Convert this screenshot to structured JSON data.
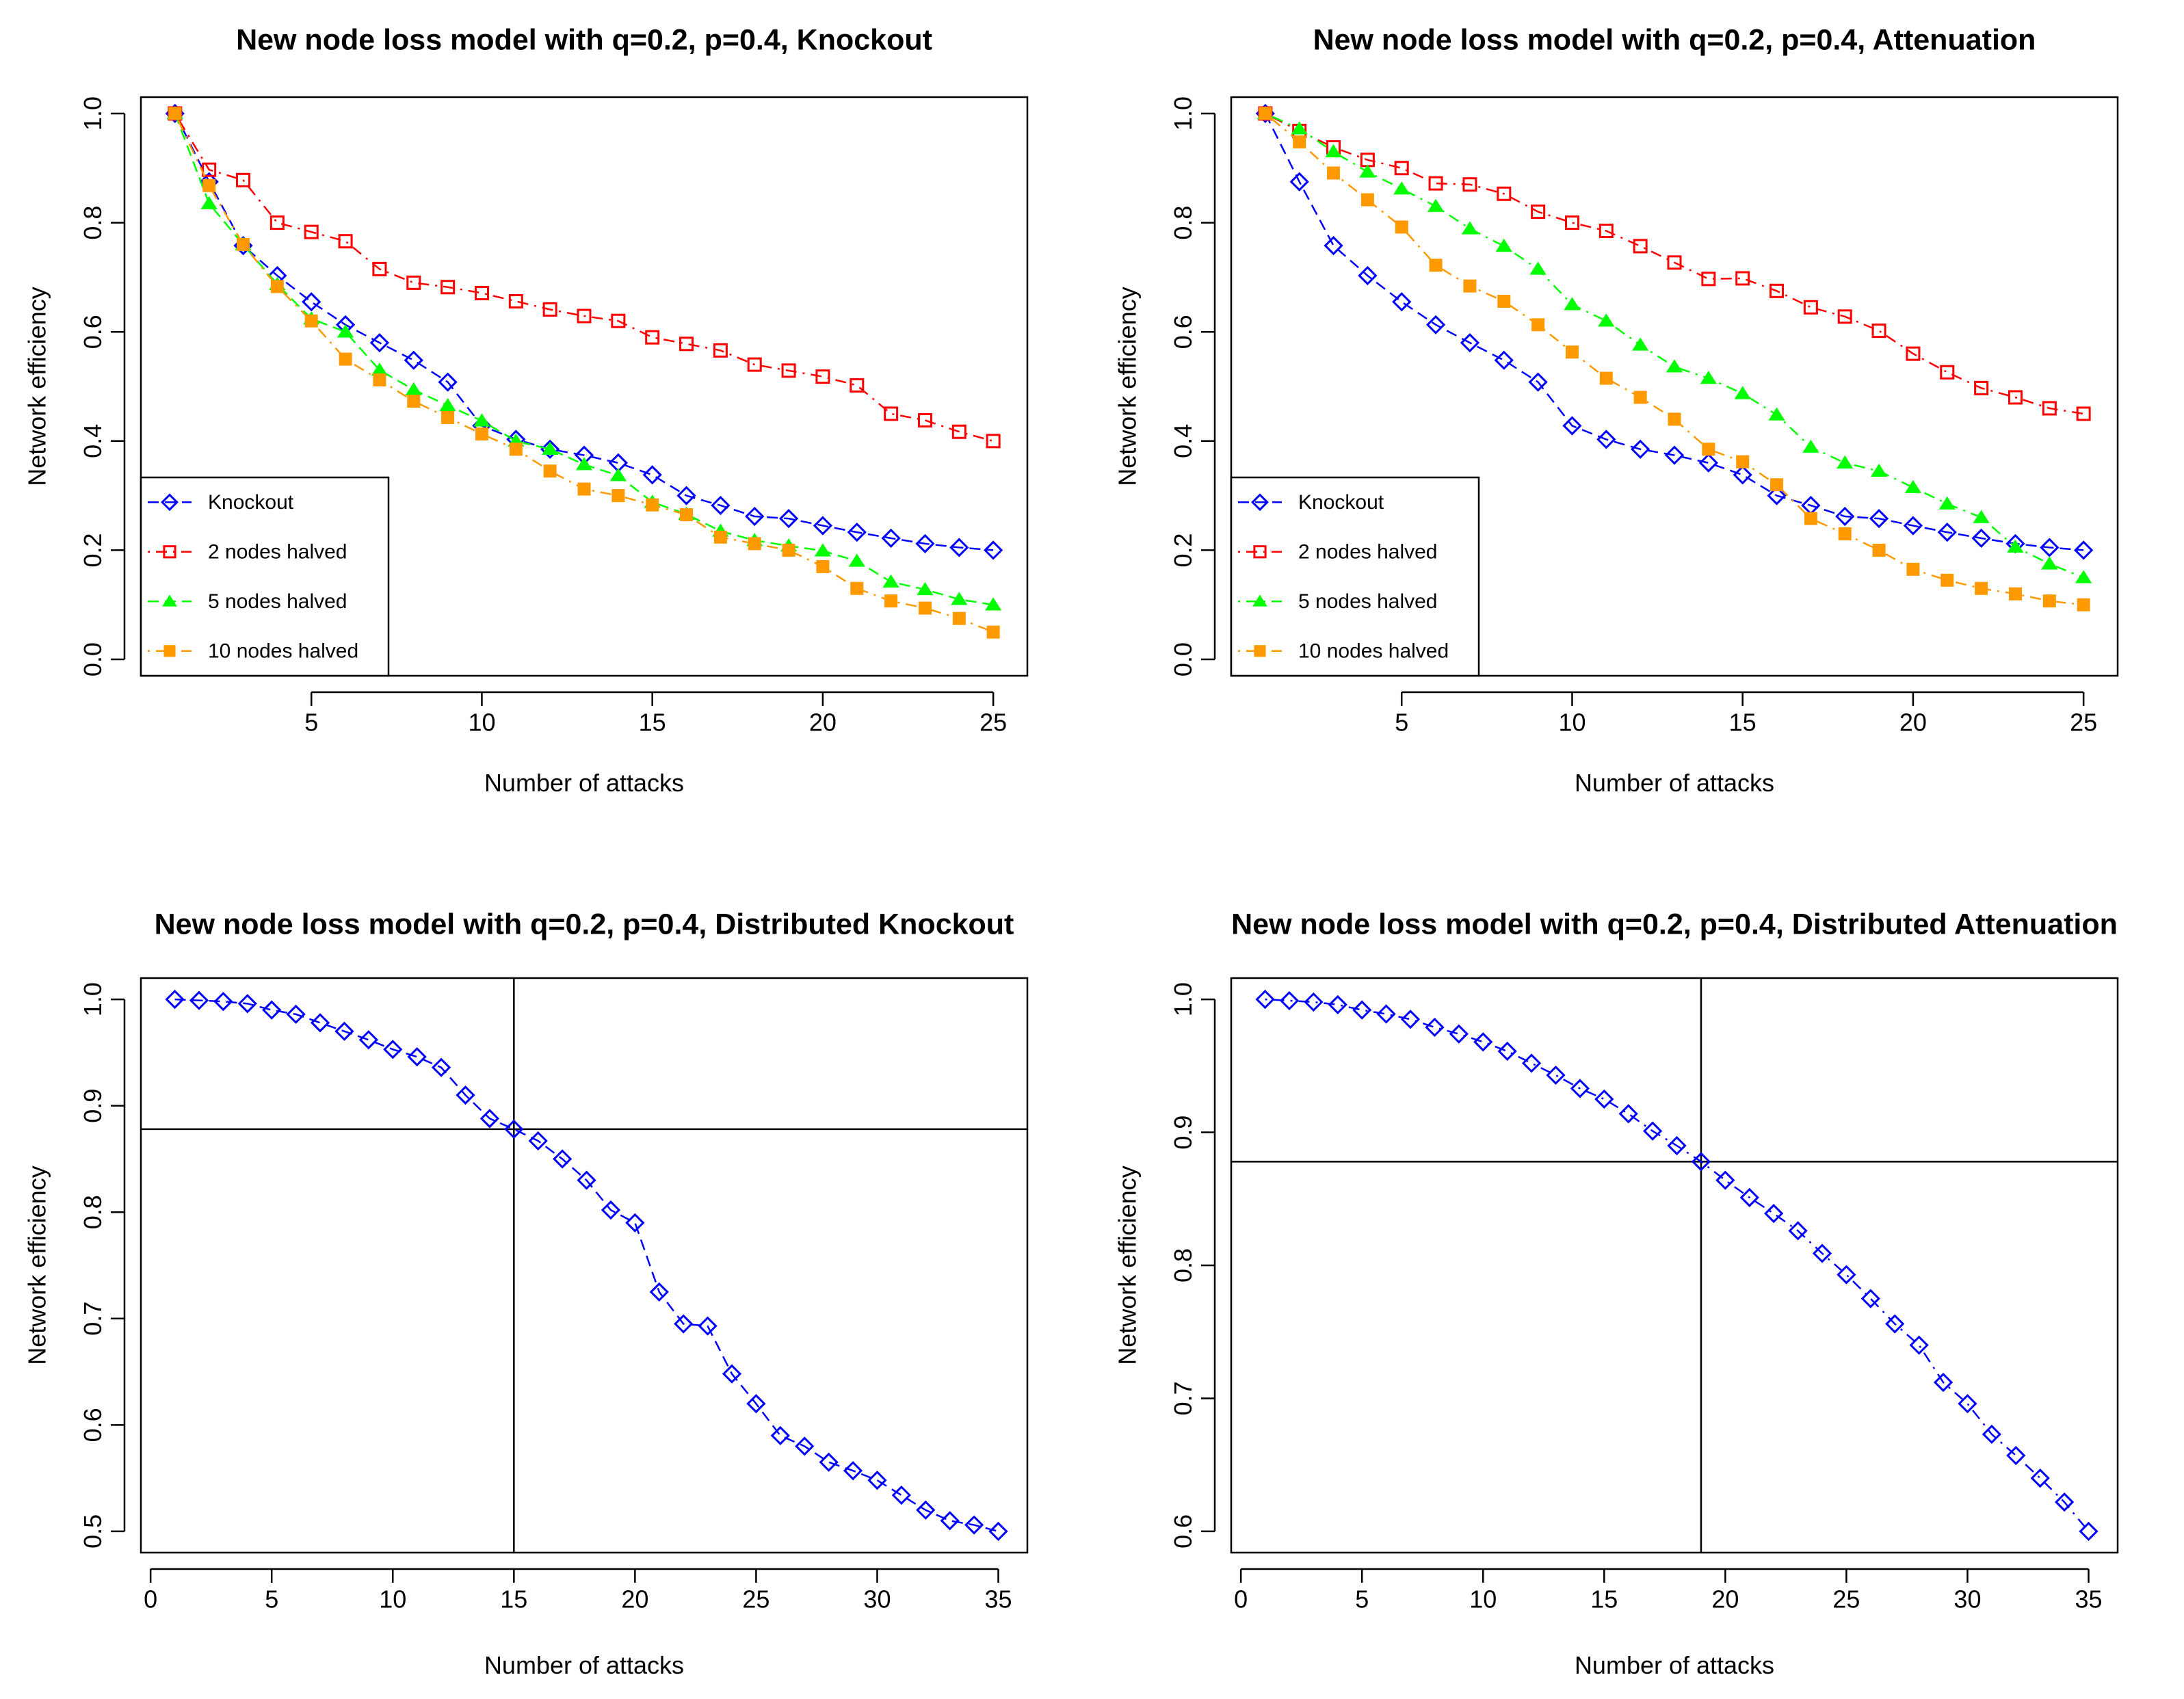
{
  "chart_data": [
    {
      "type": "line",
      "title": "New node loss model with q=0.2, p=0.4, Knockout",
      "xlabel": "Number of attacks",
      "ylabel": "Network efficiency",
      "xlim": [
        0,
        26
      ],
      "ylim": [
        -0.03,
        1.03
      ],
      "xticks": [
        5,
        10,
        15,
        20,
        25
      ],
      "yticks": [
        0.0,
        0.2,
        0.4,
        0.6,
        0.8,
        1.0
      ],
      "ytick_labels": [
        "0.0",
        "0.2",
        "0.4",
        "0.6",
        "0.8",
        "1.0"
      ],
      "legend_position": "bottom-left",
      "x": [
        1,
        2,
        3,
        4,
        5,
        6,
        7,
        8,
        9,
        10,
        11,
        12,
        13,
        14,
        15,
        16,
        17,
        18,
        19,
        20,
        21,
        22,
        23,
        24,
        25
      ],
      "series": [
        {
          "name": "Knockout",
          "color": "#0000ff",
          "marker": "diamond",
          "dash": "dashed",
          "values": [
            1.0,
            0.875,
            0.758,
            0.703,
            0.655,
            0.613,
            0.58,
            0.548,
            0.508,
            0.428,
            0.403,
            0.385,
            0.374,
            0.36,
            0.338,
            0.3,
            0.282,
            0.262,
            0.258,
            0.245,
            0.233,
            0.222,
            0.212,
            0.205,
            0.2
          ]
        },
        {
          "name": "2 nodes halved",
          "color": "#ff0000",
          "marker": "square-open",
          "dash": "dotdash",
          "values": [
            1.0,
            0.897,
            0.878,
            0.8,
            0.783,
            0.766,
            0.715,
            0.69,
            0.682,
            0.671,
            0.656,
            0.641,
            0.629,
            0.62,
            0.59,
            0.578,
            0.566,
            0.54,
            0.529,
            0.518,
            0.502,
            0.45,
            0.438,
            0.417,
            0.4
          ]
        },
        {
          "name": "5 nodes halved",
          "color": "#00ff00",
          "marker": "triangle",
          "dash": "dashed",
          "values": [
            1.0,
            0.835,
            0.76,
            0.687,
            0.624,
            0.6,
            0.53,
            0.494,
            0.465,
            0.437,
            0.4,
            0.385,
            0.357,
            0.337,
            0.288,
            0.266,
            0.235,
            0.218,
            0.208,
            0.199,
            0.18,
            0.142,
            0.128,
            0.11,
            0.1
          ]
        },
        {
          "name": "10 nodes halved",
          "color": "#ff9900",
          "marker": "square-filled",
          "dash": "dotdash",
          "values": [
            1.0,
            0.868,
            0.76,
            0.683,
            0.62,
            0.55,
            0.512,
            0.473,
            0.443,
            0.413,
            0.385,
            0.345,
            0.312,
            0.3,
            0.283,
            0.265,
            0.224,
            0.212,
            0.2,
            0.17,
            0.13,
            0.107,
            0.094,
            0.075,
            0.05
          ]
        }
      ]
    },
    {
      "type": "line",
      "title": "New node loss model with q=0.2, p=0.4, Attenuation",
      "xlabel": "Number of attacks",
      "ylabel": "Network efficiency",
      "xlim": [
        0,
        26
      ],
      "ylim": [
        -0.03,
        1.03
      ],
      "xticks": [
        5,
        10,
        15,
        20,
        25
      ],
      "yticks": [
        0.0,
        0.2,
        0.4,
        0.6,
        0.8,
        1.0
      ],
      "ytick_labels": [
        "0.0",
        "0.2",
        "0.4",
        "0.6",
        "0.8",
        "1.0"
      ],
      "legend_position": "bottom-left",
      "x": [
        1,
        2,
        3,
        4,
        5,
        6,
        7,
        8,
        9,
        10,
        11,
        12,
        13,
        14,
        15,
        16,
        17,
        18,
        19,
        20,
        21,
        22,
        23,
        24,
        25
      ],
      "series": [
        {
          "name": "Knockout",
          "color": "#0000ff",
          "marker": "diamond",
          "dash": "dashed",
          "values": [
            1.0,
            0.875,
            0.758,
            0.703,
            0.655,
            0.613,
            0.58,
            0.548,
            0.508,
            0.428,
            0.403,
            0.385,
            0.374,
            0.36,
            0.338,
            0.3,
            0.282,
            0.262,
            0.258,
            0.245,
            0.233,
            0.222,
            0.212,
            0.205,
            0.2
          ]
        },
        {
          "name": "2 nodes halved",
          "color": "#ff0000",
          "marker": "square-open",
          "dash": "dotdash",
          "values": [
            1.0,
            0.968,
            0.938,
            0.915,
            0.9,
            0.872,
            0.87,
            0.853,
            0.82,
            0.8,
            0.785,
            0.757,
            0.727,
            0.697,
            0.698,
            0.675,
            0.645,
            0.628,
            0.602,
            0.56,
            0.526,
            0.497,
            0.48,
            0.46,
            0.45
          ]
        },
        {
          "name": "5 nodes halved",
          "color": "#00ff00",
          "marker": "triangle",
          "dash": "dotdash",
          "values": [
            1.0,
            0.972,
            0.93,
            0.893,
            0.862,
            0.83,
            0.789,
            0.757,
            0.715,
            0.65,
            0.62,
            0.576,
            0.536,
            0.515,
            0.487,
            0.448,
            0.389,
            0.36,
            0.345,
            0.315,
            0.285,
            0.26,
            0.206,
            0.175,
            0.15
          ]
        },
        {
          "name": "10 nodes halved",
          "color": "#ff9900",
          "marker": "square-filled",
          "dash": "dotdash",
          "values": [
            1.0,
            0.948,
            0.891,
            0.842,
            0.792,
            0.722,
            0.684,
            0.656,
            0.613,
            0.563,
            0.515,
            0.48,
            0.44,
            0.385,
            0.362,
            0.32,
            0.258,
            0.23,
            0.2,
            0.165,
            0.145,
            0.13,
            0.12,
            0.107,
            0.1
          ]
        }
      ]
    },
    {
      "type": "line",
      "title": "New node loss model with q=0.2, p=0.4, Distributed Knockout",
      "xlabel": "Number of attacks",
      "ylabel": "Network efficiency",
      "xlim": [
        -0.4,
        36.2
      ],
      "ylim": [
        0.48,
        1.02
      ],
      "xticks": [
        0,
        5,
        10,
        15,
        20,
        25,
        30,
        35
      ],
      "yticks": [
        0.5,
        0.6,
        0.7,
        0.8,
        0.9,
        1.0
      ],
      "ytick_labels": [
        "0.5",
        "0.6",
        "0.7",
        "0.8",
        "0.9",
        "1.0"
      ],
      "reference_lines": {
        "v": 15,
        "h": 0.878
      },
      "x": [
        1,
        2,
        3,
        4,
        5,
        6,
        7,
        8,
        9,
        10,
        11,
        12,
        13,
        14,
        15,
        16,
        17,
        18,
        19,
        20,
        21,
        22,
        23,
        24,
        25,
        26,
        27,
        28,
        29,
        30,
        31,
        32,
        33,
        34,
        35
      ],
      "series": [
        {
          "name": "Distributed Knockout",
          "color": "#0000ff",
          "marker": "diamond",
          "dash": "dashed",
          "values": [
            1.0,
            0.999,
            0.998,
            0.996,
            0.99,
            0.986,
            0.978,
            0.97,
            0.962,
            0.953,
            0.946,
            0.936,
            0.91,
            0.888,
            0.878,
            0.867,
            0.85,
            0.83,
            0.802,
            0.79,
            0.725,
            0.695,
            0.693,
            0.648,
            0.62,
            0.59,
            0.58,
            0.565,
            0.557,
            0.548,
            0.534,
            0.52,
            0.51,
            0.506,
            0.5
          ]
        }
      ]
    },
    {
      "type": "line",
      "title": "New node loss model with q=0.2, p=0.4, Distributed Attenuation",
      "xlabel": "Number of attacks",
      "ylabel": "Network efficiency",
      "xlim": [
        -0.4,
        36.2
      ],
      "ylim": [
        0.584,
        1.016
      ],
      "xticks": [
        0,
        5,
        10,
        15,
        20,
        25,
        30,
        35
      ],
      "yticks": [
        0.6,
        0.7,
        0.8,
        0.9,
        1.0
      ],
      "ytick_labels": [
        "0.6",
        "0.7",
        "0.8",
        "0.9",
        "1.0"
      ],
      "reference_lines": {
        "v": 19,
        "h": 0.878
      },
      "x": [
        1,
        2,
        3,
        4,
        5,
        6,
        7,
        8,
        9,
        10,
        11,
        12,
        13,
        14,
        15,
        16,
        17,
        18,
        19,
        20,
        21,
        22,
        23,
        24,
        25,
        26,
        27,
        28,
        29,
        30,
        31,
        32,
        33,
        34,
        35
      ],
      "series": [
        {
          "name": "Distributed Attenuation",
          "color": "#0000ff",
          "marker": "diamond",
          "dash": "dotdash",
          "values": [
            1.0,
            0.999,
            0.998,
            0.996,
            0.992,
            0.989,
            0.985,
            0.979,
            0.974,
            0.968,
            0.961,
            0.952,
            0.943,
            0.933,
            0.925,
            0.914,
            0.901,
            0.89,
            0.878,
            0.864,
            0.851,
            0.839,
            0.826,
            0.809,
            0.793,
            0.775,
            0.756,
            0.74,
            0.712,
            0.696,
            0.673,
            0.657,
            0.64,
            0.622,
            0.6
          ]
        }
      ]
    }
  ]
}
